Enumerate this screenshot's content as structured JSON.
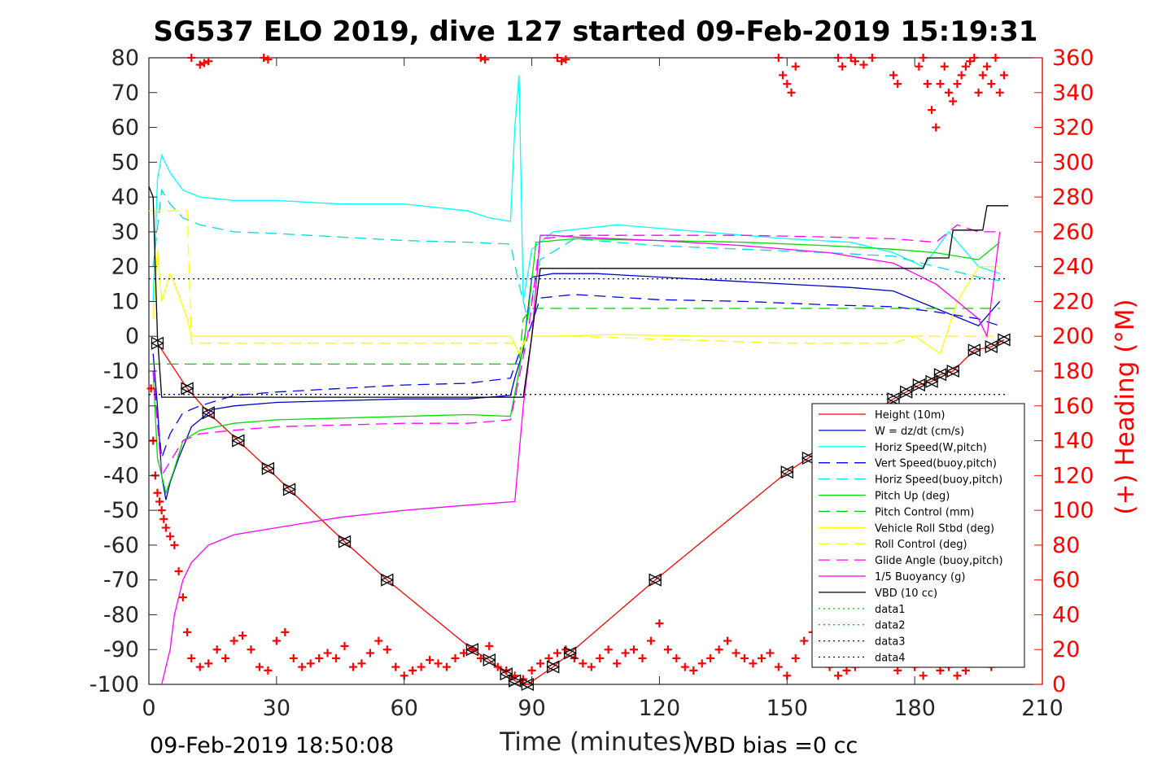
{
  "chart_data": {
    "type": "line",
    "title": "SG537 ELO 2019, dive 127 started 09-Feb-2019 15:19:31",
    "xlabel": "Time (minutes)",
    "ylabel": "",
    "y2label": "(+) Heading (°M)",
    "xlim": [
      0,
      210
    ],
    "ylim": [
      -100,
      80
    ],
    "y2lim": [
      0,
      360
    ],
    "xticks": [
      "0",
      "30",
      "60",
      "90",
      "120",
      "150",
      "180",
      "210"
    ],
    "yticks": [
      "80",
      "70",
      "60",
      "50",
      "40",
      "30",
      "20",
      "10",
      "0",
      "-10",
      "-20",
      "-30",
      "-40",
      "-50",
      "-60",
      "-70",
      "-80",
      "-90",
      "-100"
    ],
    "y2ticks": [
      "360",
      "340",
      "320",
      "300",
      "280",
      "260",
      "240",
      "220",
      "200",
      "180",
      "160",
      "140",
      "120",
      "100",
      "80",
      "60",
      "40",
      "20",
      "0"
    ],
    "grid": false,
    "legend_position": "bottom-right",
    "footer_left": "09-Feb-2019 18:50:08",
    "footer_right": "VBD bias =0 cc",
    "series": [
      {
        "name": "Height (10m)",
        "color": "#ff0000",
        "style": "solid",
        "x": [
          2,
          9,
          14,
          21,
          28,
          33,
          46,
          56,
          76,
          80,
          84,
          86,
          89,
          95,
          99,
          119,
          150,
          155,
          175,
          178,
          181,
          184,
          186,
          189,
          194,
          198,
          201
        ],
        "y": [
          -2,
          -15,
          -22,
          -30,
          -38,
          -44,
          -59,
          -70,
          -90,
          -93,
          -97,
          -99,
          -100,
          -95,
          -91,
          -70,
          -39,
          -35,
          -18,
          -16,
          -14,
          -13,
          -11,
          -10,
          -4,
          -3,
          -1
        ]
      },
      {
        "name": "W = dz/dt (cm/s)",
        "color": "#0000cc",
        "style": "solid",
        "x": [
          1,
          2,
          3,
          4,
          5,
          7,
          10,
          15,
          20,
          30,
          45,
          60,
          75,
          85,
          86,
          88,
          90,
          95,
          105,
          120,
          135,
          150,
          165,
          175,
          185,
          195,
          200
        ],
        "y": [
          -5,
          -20,
          -40,
          -47,
          -42,
          -35,
          -26,
          -21,
          -20,
          -19,
          -18.5,
          -18,
          -18,
          -17,
          -12,
          -4,
          17,
          18,
          18,
          17,
          16,
          15,
          14,
          13,
          8,
          3,
          10
        ]
      },
      {
        "name": "Horiz Speed(W,pitch)",
        "color": "#00ffff",
        "style": "solid",
        "x": [
          1,
          2,
          3,
          5,
          8,
          12,
          20,
          30,
          45,
          60,
          75,
          80,
          85,
          86,
          87,
          88,
          90,
          95,
          110,
          130,
          150,
          165,
          175,
          182,
          188,
          195,
          200
        ],
        "y": [
          10,
          45,
          52,
          47,
          42,
          40,
          39,
          39,
          38,
          38,
          36,
          34,
          33,
          60,
          75,
          10,
          25,
          30,
          32,
          30,
          28,
          27,
          24,
          20,
          30,
          20,
          18
        ]
      },
      {
        "name": "Vert Speed(buoy,pitch)",
        "color": "#0000ff",
        "style": "dashed",
        "x": [
          1,
          3,
          5,
          8,
          12,
          20,
          30,
          45,
          60,
          75,
          85,
          87,
          89,
          92,
          100,
          120,
          140,
          160,
          175,
          185,
          195,
          200
        ],
        "y": [
          -10,
          -35,
          -28,
          -22,
          -20,
          -17,
          -16,
          -15,
          -14,
          -13.5,
          -12,
          -5,
          0,
          11,
          12,
          10.5,
          10,
          9,
          8.5,
          7,
          5,
          3
        ]
      },
      {
        "name": "Horiz Speed(buoy,pitch)",
        "color": "#00dddd",
        "style": "dashed",
        "x": [
          1,
          3,
          5,
          8,
          12,
          20,
          30,
          45,
          60,
          75,
          85,
          87,
          89,
          92,
          100,
          120,
          140,
          160,
          175,
          185,
          195,
          200
        ],
        "y": [
          20,
          42,
          38,
          34,
          32,
          30,
          29.5,
          28.5,
          27.5,
          27,
          26.5,
          15,
          5,
          22,
          28,
          26,
          25,
          24,
          23,
          20,
          17,
          16
        ]
      },
      {
        "name": "Pitch Up (deg)",
        "color": "#00dd00",
        "style": "solid",
        "x": [
          1,
          2,
          4,
          6,
          8,
          12,
          20,
          30,
          45,
          60,
          75,
          85,
          87,
          89,
          91,
          100,
          120,
          140,
          160,
          175,
          185,
          195,
          200
        ],
        "y": [
          -10,
          -35,
          -45,
          -38,
          -30,
          -27,
          -25,
          -24,
          -23.5,
          -23,
          -22.5,
          -23,
          -10,
          5,
          27,
          28,
          27.5,
          27,
          26,
          25,
          24,
          22,
          27
        ]
      },
      {
        "name": "Pitch Control (mm)",
        "color": "#00cc00",
        "style": "dashed",
        "x": [
          0,
          86,
          87,
          88,
          90,
          100,
          120,
          150,
          175,
          185,
          200
        ],
        "y": [
          -8,
          -8,
          -8,
          5,
          8,
          8,
          8,
          8,
          8,
          8,
          8
        ]
      },
      {
        "name": "Vehicle Roll Stbd (deg)",
        "color": "#ffff00",
        "style": "solid",
        "x": [
          1,
          2,
          3,
          5,
          7,
          9,
          10,
          12,
          20,
          40,
          60,
          80,
          85,
          87,
          89,
          95,
          110,
          130,
          150,
          165,
          175,
          180,
          186,
          190,
          195,
          200
        ],
        "y": [
          5,
          25,
          10,
          18,
          12,
          5,
          0,
          0,
          0,
          0,
          0,
          0,
          0,
          -5,
          0,
          0,
          0.5,
          0,
          0,
          0,
          0,
          0,
          -5,
          10,
          20,
          20
        ]
      },
      {
        "name": "Roll Control (deg)",
        "color": "#ffff00",
        "style": "dashed",
        "x": [
          0,
          9,
          10,
          86,
          88,
          89,
          95,
          100,
          150,
          175,
          180,
          190,
          200
        ],
        "y": [
          36,
          36,
          -2,
          -2,
          -2,
          0,
          0,
          0,
          -2,
          -2,
          0,
          0,
          0
        ]
      },
      {
        "name": "Glide Angle (buoy,pitch)",
        "color": "#ff00ff",
        "style": "dashed",
        "x": [
          1,
          3,
          5,
          8,
          12,
          20,
          30,
          45,
          60,
          75,
          85,
          87,
          89,
          92,
          100,
          120,
          140,
          160,
          175,
          185,
          190,
          195,
          200
        ],
        "y": [
          -10,
          -40,
          -36,
          -30,
          -28,
          -27,
          -26,
          -25.5,
          -25,
          -25,
          -24,
          -12,
          0,
          28,
          29,
          29,
          29,
          28.5,
          28,
          27,
          32,
          30,
          30
        ]
      },
      {
        "name": "1/5 Buoyancy (g)",
        "color": "#ff00ff",
        "style": "solid",
        "x": [
          3,
          4,
          5,
          6,
          8,
          10,
          14,
          20,
          30,
          45,
          60,
          75,
          86,
          88,
          90,
          92,
          95,
          100,
          120,
          140,
          160,
          175,
          180,
          185,
          190,
          195,
          197,
          200
        ],
        "y": [
          -100,
          -95,
          -90,
          -80,
          -70,
          -65,
          -60,
          -57,
          -55,
          -52,
          -50,
          -48.5,
          -47.5,
          -20,
          0,
          29,
          29,
          28.5,
          27.5,
          26,
          24,
          21,
          18,
          15,
          10,
          5,
          0,
          30
        ]
      },
      {
        "name": "VBD (10 cc)",
        "color": "#000000",
        "style": "solid",
        "x": [
          0,
          1,
          2,
          3,
          86,
          88,
          90,
          92,
          99,
          165,
          175,
          182,
          183,
          188,
          189,
          196,
          197,
          202
        ],
        "y": [
          43,
          40,
          0,
          -17.5,
          -17.5,
          -17.5,
          0,
          19.5,
          19.5,
          19.5,
          19.5,
          19.5,
          22.5,
          22.5,
          30.5,
          30.5,
          37.5,
          37.5
        ]
      },
      {
        "name": "data1",
        "color": "#00dd00",
        "style": "dotted",
        "x": [],
        "y": []
      },
      {
        "name": "data2",
        "color": "#00dd00",
        "style": "dotted",
        "x": [],
        "y": []
      },
      {
        "name": "data3",
        "color": "#000088",
        "style": "dotted",
        "x": [
          0,
          202
        ],
        "y": [
          16.5,
          16.5
        ]
      },
      {
        "name": "data4",
        "color": "#000088",
        "style": "dotted",
        "x": [
          0,
          202
        ],
        "y": [
          -16.7,
          -16.7
        ]
      }
    ],
    "heading": {
      "color": "#ff0000",
      "marker": "+",
      "axis": "right",
      "x": [
        0.5,
        1,
        1.5,
        2,
        2.5,
        3,
        3.5,
        4,
        5,
        6,
        7,
        8,
        9,
        10,
        12,
        14,
        16,
        18,
        20,
        22,
        24,
        26,
        28,
        30,
        32,
        34,
        36,
        38,
        40,
        42,
        44,
        46,
        48,
        50,
        52,
        54,
        56,
        58,
        60,
        62,
        64,
        66,
        68,
        70,
        72,
        74,
        76,
        78,
        80,
        82,
        84,
        86,
        88,
        90,
        92,
        94,
        96,
        98,
        100,
        102,
        104,
        106,
        108,
        110,
        112,
        114,
        116,
        118,
        120,
        122,
        124,
        126,
        128,
        130,
        132,
        134,
        136,
        138,
        140,
        142,
        144,
        146,
        148,
        150,
        152,
        154,
        156,
        158,
        160,
        162,
        164,
        166,
        168,
        170,
        172,
        174,
        176,
        178,
        180,
        182,
        184,
        186,
        188,
        190,
        192,
        194,
        196,
        198,
        200
      ],
      "y": [
        170,
        140,
        120,
        110,
        105,
        100,
        95,
        90,
        85,
        80,
        65,
        50,
        30,
        15,
        10,
        12,
        20,
        15,
        25,
        28,
        20,
        10,
        8,
        25,
        30,
        15,
        10,
        12,
        15,
        18,
        15,
        22,
        10,
        12,
        18,
        25,
        20,
        10,
        5,
        8,
        10,
        14,
        12,
        10,
        15,
        18,
        20,
        15,
        22,
        10,
        8,
        5,
        3,
        8,
        12,
        15,
        18,
        20,
        15,
        12,
        10,
        15,
        20,
        12,
        18,
        20,
        15,
        25,
        35,
        20,
        15,
        10,
        8,
        12,
        15,
        20,
        25,
        18,
        15,
        12,
        15,
        18,
        10,
        5,
        15,
        25,
        30,
        20,
        10,
        5,
        8,
        10,
        15,
        20,
        18,
        12,
        8,
        15,
        10,
        5,
        12,
        8,
        10,
        5,
        8,
        12,
        15,
        10,
        12
      ]
    },
    "heading_upper": {
      "x": [
        10,
        12,
        13,
        14,
        27,
        28,
        78,
        79,
        96,
        97,
        98,
        148,
        149,
        150,
        151,
        152,
        162,
        163,
        165,
        166,
        168,
        170,
        175,
        176,
        181,
        182,
        183,
        184,
        185,
        186,
        187,
        188,
        189,
        190,
        191,
        192,
        193,
        194,
        195,
        196,
        197,
        198,
        199,
        200,
        201
      ],
      "y": [
        360,
        356,
        357,
        358,
        360,
        359,
        360,
        359,
        360,
        358,
        359,
        360,
        350,
        345,
        340,
        355,
        360,
        355,
        360,
        358,
        356,
        360,
        350,
        345,
        355,
        360,
        345,
        330,
        320,
        345,
        355,
        340,
        335,
        345,
        350,
        355,
        358,
        360,
        340,
        350,
        355,
        345,
        360,
        340,
        350
      ]
    }
  }
}
